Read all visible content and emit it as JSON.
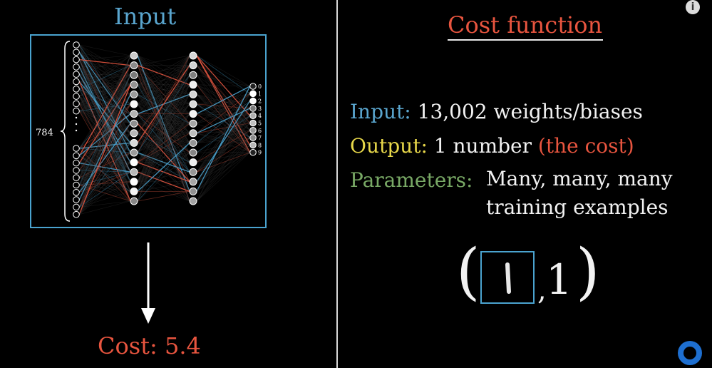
{
  "left": {
    "title": "Input",
    "input_count_label": "784",
    "output_labels": [
      "0",
      "1",
      "2",
      "3",
      "4",
      "5",
      "6",
      "7",
      "8",
      "9"
    ],
    "cost_label": "Cost:",
    "cost_value": "5.4"
  },
  "right": {
    "title": "Cost function",
    "input_label": "Input:",
    "input_value": "13,002 weights/biases",
    "output_label": "Output:",
    "output_value": "1 number",
    "output_note": "(the cost)",
    "params_label": "Parameters:",
    "params_value_line1": "Many, many, many",
    "params_value_line2": "training examples",
    "example_open_paren": "(",
    "example_close_paren": ")",
    "example_comma": ",",
    "example_label": "1"
  },
  "colors": {
    "blue": "#5aa6cf",
    "red": "#e8553f",
    "yellow": "#e8d84a",
    "green": "#78a865"
  },
  "icons": [
    "info-icon",
    "loading-spinner-icon"
  ]
}
